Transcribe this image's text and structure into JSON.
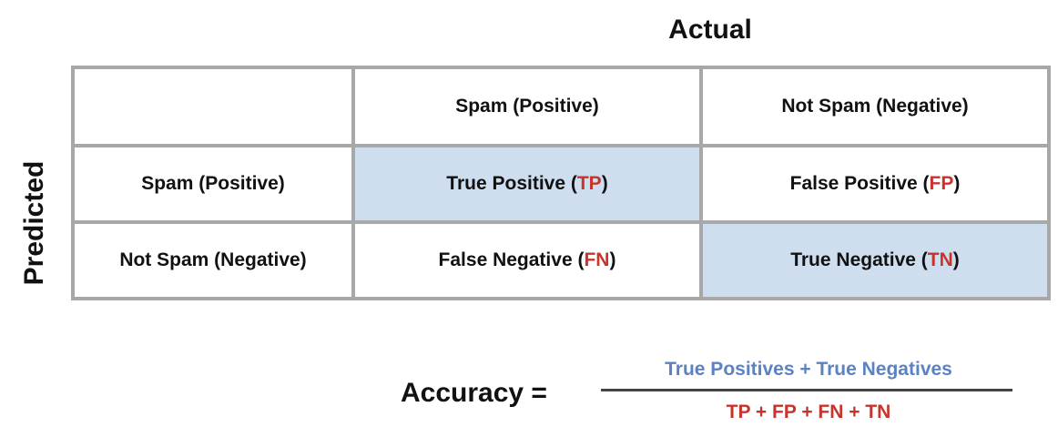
{
  "axes": {
    "actual": "Actual",
    "predicted": "Predicted"
  },
  "matrix": {
    "corner": "",
    "col_headers": [
      "Spam (Positive)",
      "Not Spam (Negative)"
    ],
    "rows": [
      {
        "header": "Spam (Positive)",
        "cells": [
          {
            "text": "True Positive (",
            "abbr": "TP",
            "close": ")",
            "shaded": true
          },
          {
            "text": "False Positive (",
            "abbr": "FP",
            "close": ")",
            "shaded": false
          }
        ]
      },
      {
        "header": "Not Spam (Negative)",
        "cells": [
          {
            "text": "False Negative (",
            "abbr": "FN",
            "close": ")",
            "shaded": false
          },
          {
            "text": "True Negative (",
            "abbr": "TN",
            "close": ")",
            "shaded": true
          }
        ]
      }
    ]
  },
  "formula": {
    "label": "Accuracy =",
    "numerator": "True Positives + True Negatives",
    "denominator": "TP + FP + FN + TN"
  },
  "colors": {
    "shade": "#cfdeef",
    "abbr": "#c8342c",
    "numerator": "#5b82c2",
    "grid": "#a8a8a8"
  }
}
